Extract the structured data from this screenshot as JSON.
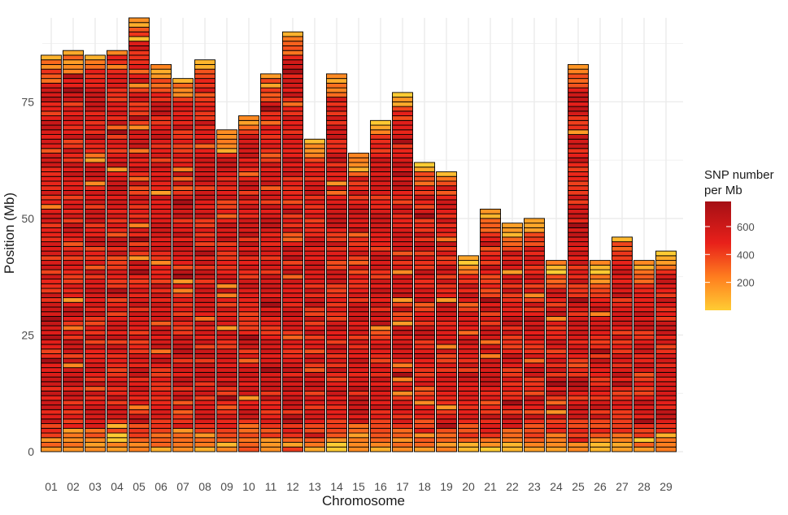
{
  "chart_data": {
    "type": "heatmap",
    "title": "",
    "xlabel": "Chromosome",
    "ylabel": "Position (Mb)",
    "categories": [
      "01",
      "02",
      "03",
      "04",
      "05",
      "06",
      "07",
      "08",
      "09",
      "10",
      "11",
      "12",
      "13",
      "14",
      "15",
      "16",
      "17",
      "18",
      "19",
      "20",
      "21",
      "22",
      "23",
      "24",
      "25",
      "26",
      "27",
      "28",
      "29"
    ],
    "chromosome_lengths_mb": [
      85,
      86,
      85,
      86,
      93,
      83,
      80,
      84,
      69,
      72,
      81,
      90,
      67,
      81,
      64,
      71,
      77,
      62,
      60,
      42,
      52,
      49,
      50,
      41,
      83,
      41,
      46,
      41,
      43
    ],
    "bin_size_mb": 1,
    "ylim": [
      0,
      93
    ],
    "y_ticks": [
      0,
      25,
      50,
      75
    ],
    "grid": true,
    "color_scale": {
      "low": "#FFCC33",
      "mid_low": "#FF7F1F",
      "mid": "#E8201A",
      "high": "#A50F15",
      "min": 0,
      "max": 780
    },
    "snp_density_profile": {
      "typical_interior": 520,
      "chromosome_end_low": 120,
      "notes_free": true
    },
    "legend": {
      "title_line1": "SNP number",
      "title_line2": "per Mb",
      "ticks": [
        200,
        400,
        600
      ],
      "position": "right"
    }
  },
  "colors": {
    "grid": "#ebebeb",
    "bin_border": "#000000",
    "background": "#ffffff"
  }
}
